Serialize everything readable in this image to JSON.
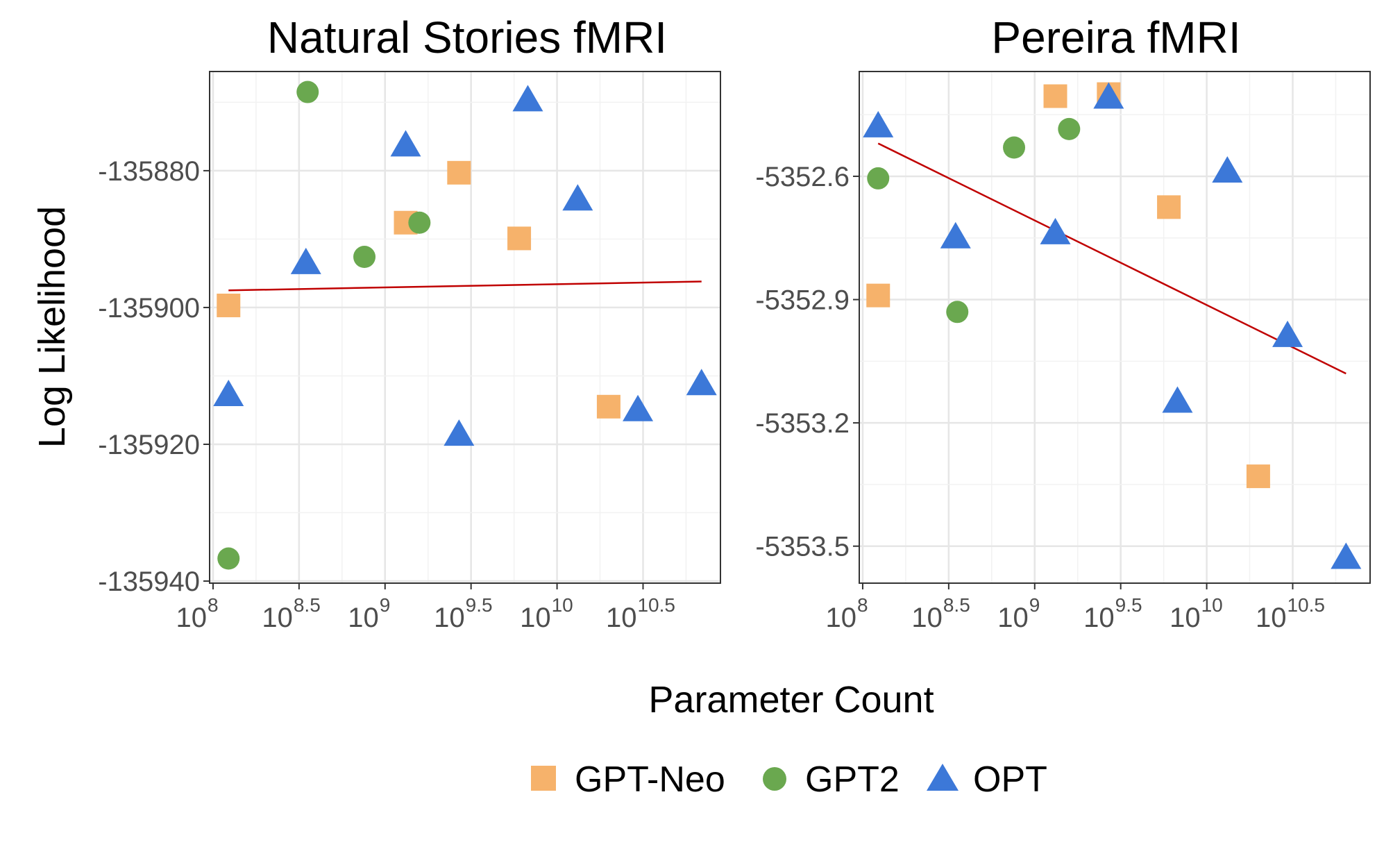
{
  "chart_data": {
    "type": "scatter",
    "x_axis_title": "Parameter Count",
    "y_axis_title": "Log Likelihood",
    "x_scale": "log10",
    "x_ticks": [
      {
        "base": "10",
        "exp": "8",
        "value": 8
      },
      {
        "base": "10",
        "exp": "8.5",
        "value": 8.5
      },
      {
        "base": "10",
        "exp": "9",
        "value": 9
      },
      {
        "base": "10",
        "exp": "9.5",
        "value": 9.5
      },
      {
        "base": "10",
        "exp": "10",
        "value": 10
      },
      {
        "base": "10",
        "exp": "10.5",
        "value": 10.5
      }
    ],
    "legend": {
      "position": "bottom",
      "entries": [
        {
          "label": "GPT-Neo",
          "shape": "square",
          "color": "#F6B26B"
        },
        {
          "label": "GPT2",
          "shape": "circle",
          "color": "#6AA84F"
        },
        {
          "label": "OPT",
          "shape": "triangle",
          "color": "#3C78D8"
        }
      ]
    },
    "trend_color": "#C00000",
    "grid": true,
    "panels": [
      {
        "title": "Natural Stories fMRI",
        "xlim": [
          7.98,
          10.95
        ],
        "ylim": [
          -135940.3,
          -135865.5
        ],
        "y_ticks": [
          {
            "label": "-135880",
            "value": -135880
          },
          {
            "label": "-135900",
            "value": -135900
          },
          {
            "label": "-135920",
            "value": -135920
          },
          {
            "label": "-135940",
            "value": -135940
          }
        ],
        "trend": {
          "x": [
            8.09,
            10.84
          ],
          "y": [
            -135897.5,
            -135896.2
          ]
        },
        "series": [
          {
            "name": "GPT-Neo",
            "points": [
              {
                "x": 8.09,
                "y": -135899.7
              },
              {
                "x": 9.12,
                "y": -135887.6
              },
              {
                "x": 9.43,
                "y": -135880.3
              },
              {
                "x": 9.78,
                "y": -135889.9
              },
              {
                "x": 10.3,
                "y": -135914.5
              }
            ]
          },
          {
            "name": "GPT2",
            "points": [
              {
                "x": 8.09,
                "y": -135936.7
              },
              {
                "x": 8.55,
                "y": -135868.5
              },
              {
                "x": 8.88,
                "y": -135892.6
              },
              {
                "x": 9.2,
                "y": -135887.6
              }
            ]
          },
          {
            "name": "OPT",
            "points": [
              {
                "x": 8.09,
                "y": -135912.9
              },
              {
                "x": 8.54,
                "y": -135893.6
              },
              {
                "x": 9.12,
                "y": -135876.4
              },
              {
                "x": 9.43,
                "y": -135918.7
              },
              {
                "x": 9.83,
                "y": -135869.8
              },
              {
                "x": 10.12,
                "y": -135884.3
              },
              {
                "x": 10.47,
                "y": -135915.1
              },
              {
                "x": 10.84,
                "y": -135911.3
              }
            ]
          }
        ]
      },
      {
        "title": "Pereira fMRI",
        "xlim": [
          7.98,
          10.95
        ],
        "ylim": [
          -5353.59,
          -5352.345
        ],
        "y_ticks": [
          {
            "label": "-5352.6",
            "value": -5352.6
          },
          {
            "label": "-5352.9",
            "value": -5352.9
          },
          {
            "label": "-5353.2",
            "value": -5353.2
          },
          {
            "label": "-5353.5",
            "value": -5353.5
          }
        ],
        "trend": {
          "x": [
            8.09,
            10.81
          ],
          "y": [
            -5352.52,
            -5353.08
          ]
        },
        "series": [
          {
            "name": "GPT-Neo",
            "points": [
              {
                "x": 8.09,
                "y": -5352.89
              },
              {
                "x": 9.12,
                "y": -5352.405
              },
              {
                "x": 9.43,
                "y": -5352.4
              },
              {
                "x": 9.78,
                "y": -5352.675
              },
              {
                "x": 10.3,
                "y": -5353.33
              }
            ]
          },
          {
            "name": "GPT2",
            "points": [
              {
                "x": 8.09,
                "y": -5352.605
              },
              {
                "x": 8.55,
                "y": -5352.93
              },
              {
                "x": 8.88,
                "y": -5352.53
              },
              {
                "x": 9.2,
                "y": -5352.485
              }
            ]
          },
          {
            "name": "OPT",
            "points": [
              {
                "x": 8.09,
                "y": -5352.48
              },
              {
                "x": 8.54,
                "y": -5352.75
              },
              {
                "x": 9.12,
                "y": -5352.74
              },
              {
                "x": 9.43,
                "y": -5352.41
              },
              {
                "x": 9.83,
                "y": -5353.15
              },
              {
                "x": 10.12,
                "y": -5352.59
              },
              {
                "x": 10.47,
                "y": -5352.99
              },
              {
                "x": 10.81,
                "y": -5353.53
              }
            ]
          }
        ]
      }
    ]
  }
}
